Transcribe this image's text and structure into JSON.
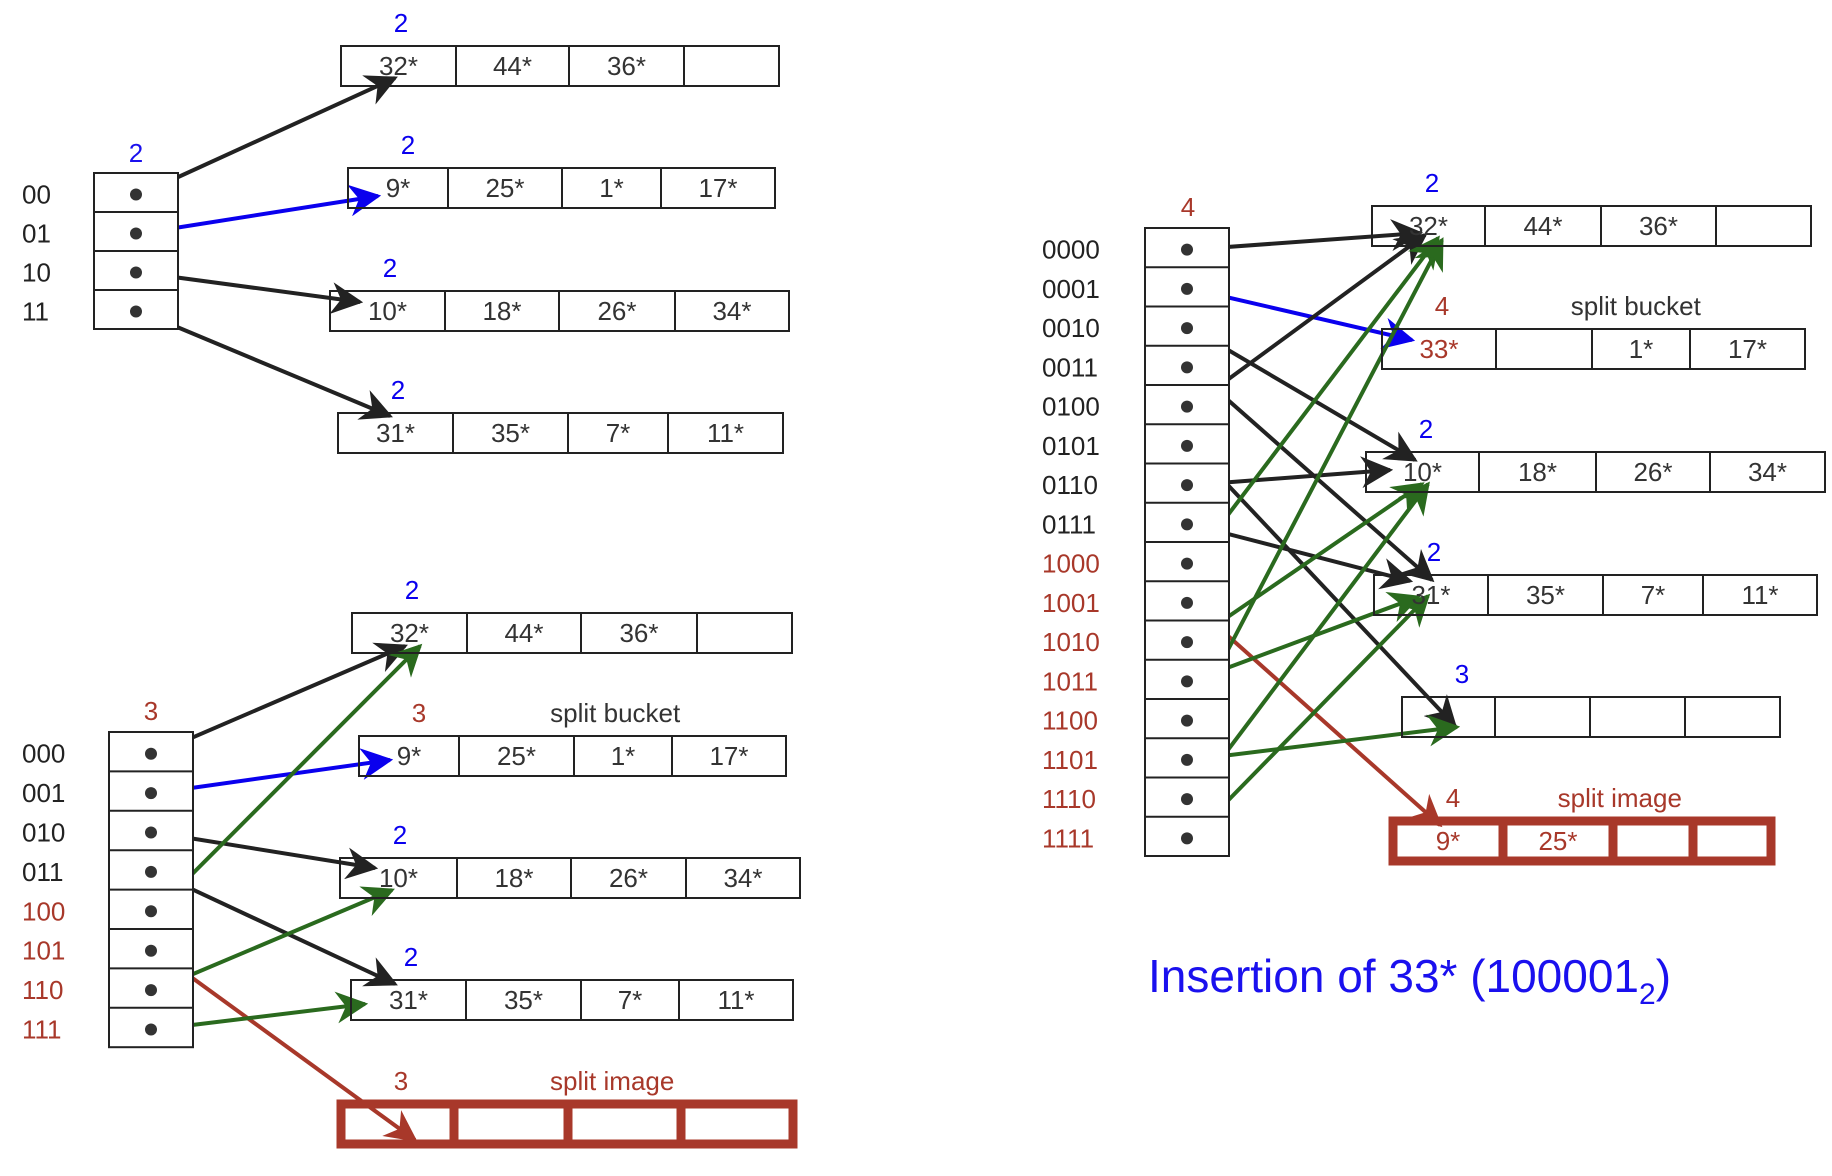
{
  "colors": {
    "black": "#222222",
    "blue": "#0a00ee",
    "green": "#2a6a1e",
    "red": "#a8382a",
    "lbl_blue": "#1a10ee"
  },
  "title": {
    "main": "Insertion of 33* (100001",
    "sub": "2",
    "close": ")"
  },
  "panels": [
    {
      "id": "depth2",
      "global_depth": "2",
      "labels": [
        {
          "text": "00",
          "c": "black"
        },
        {
          "text": "01",
          "c": "black"
        },
        {
          "text": "10",
          "c": "black"
        },
        {
          "text": "11",
          "c": "black"
        }
      ],
      "buckets": [
        {
          "depth": "2",
          "depth_c": "blue",
          "cells": [
            "32*",
            "44*",
            "36*",
            ""
          ]
        },
        {
          "depth": "2",
          "depth_c": "blue",
          "cells": [
            "9*",
            "25*",
            "1*",
            "17*"
          ]
        },
        {
          "depth": "2",
          "depth_c": "blue",
          "cells": [
            "10*",
            "18*",
            "26*",
            "34*"
          ]
        },
        {
          "depth": "2",
          "depth_c": "blue",
          "cells": [
            "31*",
            "35*",
            "7*",
            "11*"
          ]
        }
      ]
    },
    {
      "id": "depth3",
      "global_depth": "3",
      "labels": [
        {
          "text": "000",
          "c": "black"
        },
        {
          "text": "001",
          "c": "black"
        },
        {
          "text": "010",
          "c": "black"
        },
        {
          "text": "011",
          "c": "black"
        },
        {
          "text": "100",
          "c": "red"
        },
        {
          "text": "101",
          "c": "red"
        },
        {
          "text": "110",
          "c": "red"
        },
        {
          "text": "111",
          "c": "red"
        }
      ],
      "buckets": [
        {
          "depth": "2",
          "depth_c": "blue",
          "cells": [
            "32*",
            "44*",
            "36*",
            ""
          ]
        },
        {
          "depth": "3",
          "depth_c": "red",
          "note": "split bucket",
          "cells": [
            "9*",
            "25*",
            "1*",
            "17*"
          ]
        },
        {
          "depth": "2",
          "depth_c": "blue",
          "cells": [
            "10*",
            "18*",
            "26*",
            "34*"
          ]
        },
        {
          "depth": "2",
          "depth_c": "blue",
          "cells": [
            "31*",
            "35*",
            "7*",
            "11*"
          ]
        },
        {
          "depth": "3",
          "depth_c": "red",
          "note": "split image",
          "image": true,
          "cells": [
            "",
            "",
            "",
            ""
          ]
        }
      ]
    },
    {
      "id": "depth4",
      "global_depth": "4",
      "labels": [
        {
          "text": "0000",
          "c": "black"
        },
        {
          "text": "0001",
          "c": "black"
        },
        {
          "text": "0010",
          "c": "black"
        },
        {
          "text": "0011",
          "c": "black"
        },
        {
          "text": "0100",
          "c": "black"
        },
        {
          "text": "0101",
          "c": "black"
        },
        {
          "text": "0110",
          "c": "black"
        },
        {
          "text": "0111",
          "c": "black"
        },
        {
          "text": "1000",
          "c": "red"
        },
        {
          "text": "1001",
          "c": "red"
        },
        {
          "text": "1010",
          "c": "red"
        },
        {
          "text": "1011",
          "c": "red"
        },
        {
          "text": "1100",
          "c": "red"
        },
        {
          "text": "1101",
          "c": "red"
        },
        {
          "text": "1110",
          "c": "red"
        },
        {
          "text": "1111",
          "c": "red"
        }
      ],
      "buckets": [
        {
          "depth": "2",
          "depth_c": "blue",
          "cells": [
            "32*",
            "44*",
            "36*",
            ""
          ]
        },
        {
          "depth": "4",
          "depth_c": "red",
          "note": "split bucket",
          "first_red": true,
          "cells": [
            "33*",
            "",
            "1*",
            "17*"
          ]
        },
        {
          "depth": "2",
          "depth_c": "blue",
          "cells": [
            "10*",
            "18*",
            "26*",
            "34*"
          ]
        },
        {
          "depth": "2",
          "depth_c": "blue",
          "cells": [
            "31*",
            "35*",
            "7*",
            "11*"
          ]
        },
        {
          "depth": "3",
          "depth_c": "blue",
          "cells": [
            "",
            "",
            "",
            ""
          ]
        },
        {
          "depth": "4",
          "depth_c": "red",
          "note": "split image",
          "image": true,
          "red_text": true,
          "cells": [
            "9*",
            "25*",
            "",
            ""
          ]
        }
      ]
    }
  ]
}
